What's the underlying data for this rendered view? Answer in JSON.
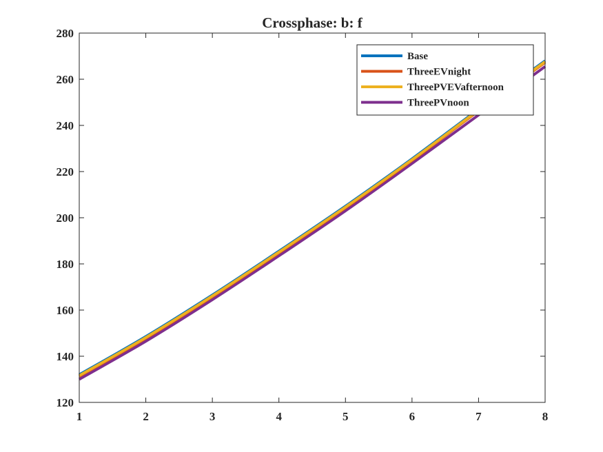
{
  "chart_data": {
    "type": "line",
    "title": "Crossphase: b: f",
    "xlabel": "",
    "ylabel": "",
    "xlim": [
      1,
      8
    ],
    "ylim": [
      120,
      280
    ],
    "xticks": [
      "1",
      "2",
      "3",
      "4",
      "5",
      "6",
      "7",
      "8"
    ],
    "yticks": [
      "120",
      "140",
      "160",
      "180",
      "200",
      "220",
      "240",
      "260",
      "280"
    ],
    "grid": false,
    "legend_position": "top-right",
    "x": [
      1,
      2,
      3,
      4,
      5,
      6,
      7,
      8
    ],
    "series": [
      {
        "name": "Base",
        "color": "#0072BD",
        "values": [
          132,
          148.5,
          166.5,
          185.5,
          205,
          225.5,
          247,
          268
        ]
      },
      {
        "name": "ThreeEVnight",
        "color": "#D95319",
        "values": [
          131.3,
          147.8,
          165.8,
          184.8,
          204.3,
          224.8,
          246.3,
          267.3
        ]
      },
      {
        "name": "ThreePVEVafternoon",
        "color": "#EDB120",
        "values": [
          131.6,
          148.1,
          166.1,
          185.1,
          204.6,
          225.1,
          246.6,
          267.6
        ]
      },
      {
        "name": "ThreePVnoon",
        "color": "#7E2F8E",
        "values": [
          130,
          146.5,
          164.5,
          183.5,
          203,
          223.5,
          244.5,
          265.5
        ]
      }
    ]
  }
}
